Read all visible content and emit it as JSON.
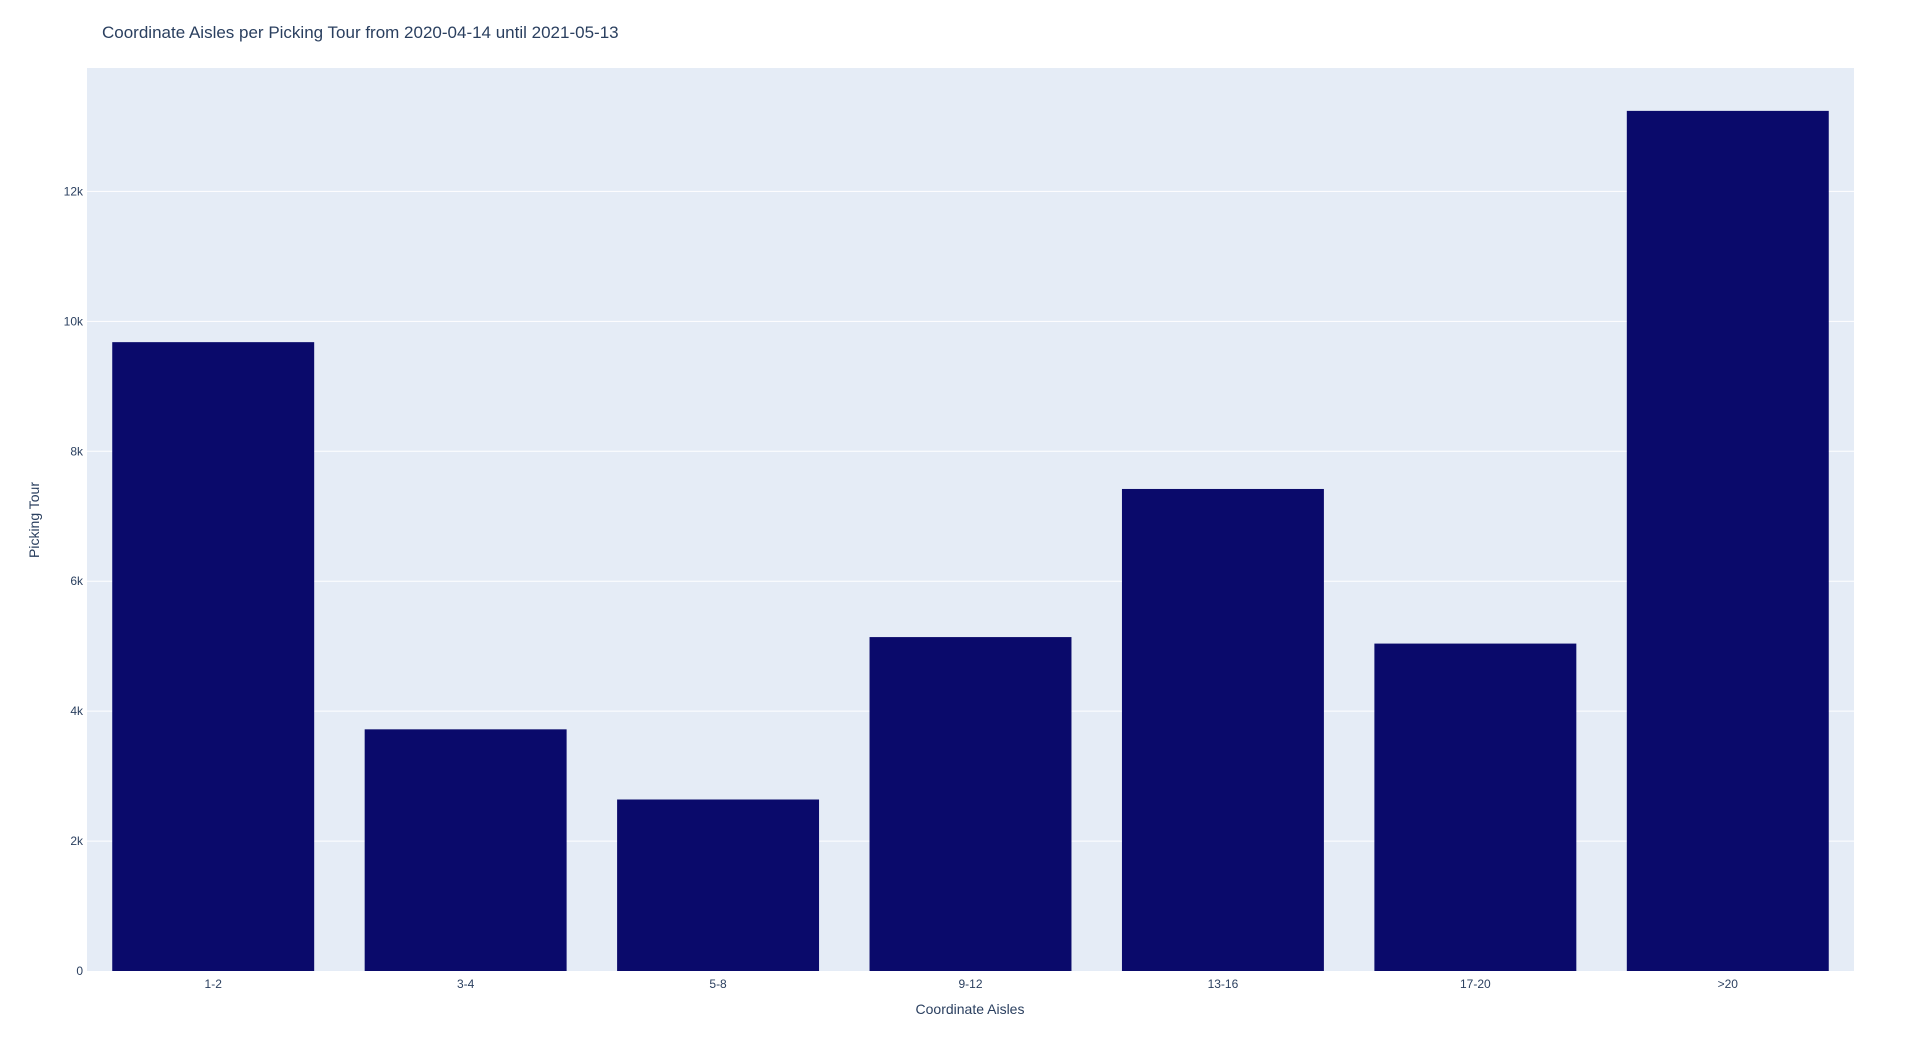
{
  "chart_data": {
    "type": "bar",
    "title": "Coordinate Aisles per Picking Tour from 2020-04-14 until 2021-05-13",
    "xlabel": "Coordinate Aisles",
    "ylabel": "Picking Tour",
    "categories": [
      "1-2",
      "3-4",
      "5-8",
      "9-12",
      "13-16",
      "17-20",
      ">20"
    ],
    "values": [
      9680,
      3720,
      2640,
      5140,
      7420,
      5040,
      13240
    ],
    "ylim": [
      0,
      13900
    ],
    "yticks": [
      0,
      2000,
      4000,
      6000,
      8000,
      10000,
      12000
    ],
    "ytick_labels": [
      "0",
      "2k",
      "4k",
      "6k",
      "8k",
      "10k",
      "12k"
    ],
    "grid": true,
    "legend": "none",
    "colors": {
      "bar": "#0a0a6b",
      "plot_background": "#e5ecf6",
      "grid": "#ffffff",
      "text": "#2a3f5f"
    }
  }
}
